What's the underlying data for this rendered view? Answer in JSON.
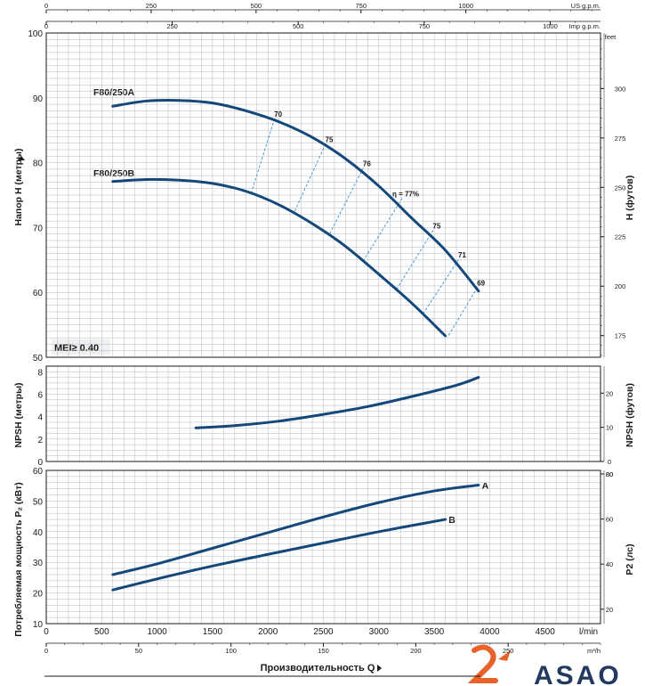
{
  "colors": {
    "curve": "#14487a",
    "efficiency": "#3d8fd1",
    "grid": "#b4b8bd",
    "axis": "#1a1a1a",
    "logo_orange": "#e8622a",
    "logo_navy": "#233a5e"
  },
  "top_axes": {
    "us_gpm_label": "US g.p.m.",
    "us_gpm_ticks": [
      "0",
      "250",
      "500",
      "750",
      "1000"
    ],
    "imp_gpm_label": "Imp g.p.m.",
    "imp_gpm_ticks": [
      "0",
      "250",
      "500",
      "750",
      "1000"
    ]
  },
  "bottom_axes": {
    "lmin_label": "l/min",
    "lmin_ticks": [
      "0",
      "500",
      "1000",
      "1500",
      "2000",
      "2500",
      "3000",
      "3500",
      "4000",
      "4500"
    ],
    "m3h_label": "m³/h",
    "m3h_ticks": [
      "0",
      "50",
      "100",
      "150",
      "200",
      "250"
    ],
    "x_title": "Производительность Q"
  },
  "labels": {
    "head_left": "Напор H (метры)",
    "head_right": "H (футов)",
    "feet_unit": "feet",
    "npsh_left": "NPSH (метры)",
    "npsh_right": "NPSH (футов)",
    "power_left": "Потребляемая мощность P₂ (кВт)",
    "power_right": "P2 (лс)",
    "mei": "MEI≥ 0.40",
    "curve_a": "F80/250A",
    "curve_b": "F80/250B",
    "power_a": "A",
    "power_b": "B"
  },
  "logo": {
    "text": "ASAO"
  },
  "chart_data": [
    {
      "type": "line",
      "name": "head",
      "xlabel": "Производительность Q (l/min)",
      "ylabel": "Напор H (метры)",
      "xlim": [
        0,
        5000
      ],
      "ylim": [
        50,
        100
      ],
      "y2label": "H (футов)",
      "y2ticks": [
        "175",
        "200",
        "225",
        "250",
        "275",
        "300"
      ],
      "y2ticks_m": [
        53.34,
        60.96,
        68.58,
        76.2,
        83.82,
        91.44
      ],
      "yticks": [
        "50",
        "60",
        "70",
        "80",
        "90",
        "100"
      ],
      "series": [
        {
          "name": "F80/250A",
          "x": [
            600,
            900,
            1200,
            1500,
            1800,
            2100,
            2400,
            2700,
            3000,
            3300,
            3600,
            3900
          ],
          "values": [
            88.7,
            89.5,
            89.6,
            89.2,
            88.0,
            86.3,
            83.9,
            80.6,
            76.4,
            71.4,
            66.5,
            60.2
          ]
        },
        {
          "name": "F80/250B",
          "x": [
            600,
            900,
            1200,
            1500,
            1800,
            2100,
            2400,
            2700,
            3000,
            3300,
            3600
          ],
          "values": [
            77.1,
            77.4,
            77.3,
            76.8,
            75.6,
            73.5,
            70.6,
            67.1,
            62.8,
            58.3,
            53.3
          ]
        }
      ],
      "efficiency_lines": [
        {
          "label": "70",
          "x": [
            2060,
            1850
          ],
          "values": [
            86.8,
            75.4
          ]
        },
        {
          "label": "75",
          "x": [
            2520,
            2230
          ],
          "values": [
            82.9,
            72.1
          ]
        },
        {
          "label": "76",
          "x": [
            2860,
            2550
          ],
          "values": [
            79.2,
            68.8
          ]
        },
        {
          "label": "η = 77%",
          "x": [
            3210,
            2850
          ],
          "values": [
            74.5,
            64.6
          ]
        },
        {
          "label": "75",
          "x": [
            3490,
            3150
          ],
          "values": [
            69.6,
            60.2
          ]
        },
        {
          "label": "71",
          "x": [
            3720,
            3400
          ],
          "values": [
            65.1,
            56.7
          ]
        },
        {
          "label": "69",
          "x": [
            3890,
            3620
          ],
          "values": [
            60.8,
            53.1
          ]
        }
      ]
    },
    {
      "type": "line",
      "name": "npsh",
      "xlabel": "Производительность Q (l/min)",
      "ylabel": "NPSH (метры)",
      "xlim": [
        0,
        5000
      ],
      "ylim": [
        0,
        8.5
      ],
      "yticks": [
        "0",
        "2",
        "4",
        "6",
        "8"
      ],
      "y2label": "NPSH (футов)",
      "y2ticks": [
        "0",
        "10",
        "20"
      ],
      "y2ticks_m": [
        0,
        3.048,
        6.096
      ],
      "series": [
        {
          "name": "",
          "x": [
            1350,
            1700,
            2100,
            2500,
            2900,
            3300,
            3700,
            3900
          ],
          "values": [
            3.0,
            3.2,
            3.6,
            4.2,
            4.9,
            5.8,
            6.8,
            7.5
          ]
        }
      ]
    },
    {
      "type": "line",
      "name": "power",
      "xlabel": "Производительность Q (l/min)",
      "ylabel": "Потребляемая мощность P₂ (кВт)",
      "xlim": [
        0,
        5000
      ],
      "ylim": [
        10,
        60
      ],
      "yticks": [
        "10",
        "20",
        "30",
        "40",
        "50",
        "60"
      ],
      "y2label": "P2 (лс)",
      "y2ticks": [
        "20",
        "40",
        "60",
        "80"
      ],
      "y2ticks_kw": [
        14.71,
        29.42,
        44.13,
        58.84
      ],
      "series": [
        {
          "name": "A",
          "x": [
            600,
            1000,
            1500,
            2000,
            2500,
            3000,
            3500,
            3900
          ],
          "values": [
            26.0,
            29.5,
            34.6,
            39.7,
            44.8,
            49.5,
            53.3,
            55.2
          ]
        },
        {
          "name": "B",
          "x": [
            600,
            1000,
            1500,
            2000,
            2500,
            3000,
            3600
          ],
          "values": [
            21.0,
            24.6,
            28.8,
            32.6,
            36.3,
            40.0,
            44.0
          ]
        }
      ]
    }
  ]
}
